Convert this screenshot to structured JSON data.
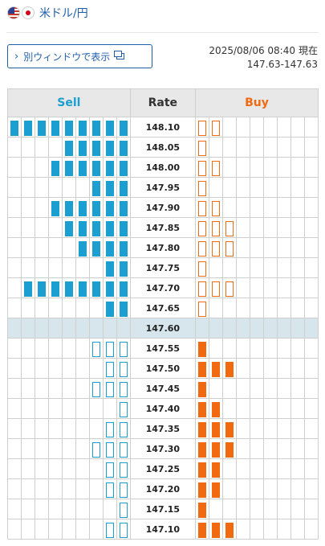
{
  "header": {
    "pair_title": "米ドル/円"
  },
  "toolbar": {
    "new_window_label": "別ウィンドウで表示"
  },
  "quote": {
    "datetime": "2025/08/06 08:40",
    "now_label": "現在",
    "range": "147.63-147.63"
  },
  "board": {
    "sell_header": "Sell",
    "rate_header": "Rate",
    "buy_header": "Buy",
    "columns_per_side": 9,
    "current_rate": "147.60",
    "rows": [
      {
        "rate": "148.10",
        "sell": 9,
        "sell_style": "filled",
        "buy": 2,
        "buy_style": "outline"
      },
      {
        "rate": "148.05",
        "sell": 5,
        "sell_style": "filled",
        "buy": 1,
        "buy_style": "outline"
      },
      {
        "rate": "148.00",
        "sell": 6,
        "sell_style": "filled",
        "buy": 2,
        "buy_style": "outline"
      },
      {
        "rate": "147.95",
        "sell": 3,
        "sell_style": "filled",
        "buy": 1,
        "buy_style": "outline"
      },
      {
        "rate": "147.90",
        "sell": 6,
        "sell_style": "filled",
        "buy": 2,
        "buy_style": "outline"
      },
      {
        "rate": "147.85",
        "sell": 5,
        "sell_style": "filled",
        "buy": 3,
        "buy_style": "outline"
      },
      {
        "rate": "147.80",
        "sell": 4,
        "sell_style": "filled",
        "buy": 3,
        "buy_style": "outline"
      },
      {
        "rate": "147.75",
        "sell": 2,
        "sell_style": "filled",
        "buy": 1,
        "buy_style": "outline"
      },
      {
        "rate": "147.70",
        "sell": 8,
        "sell_style": "filled",
        "buy": 3,
        "buy_style": "outline"
      },
      {
        "rate": "147.65",
        "sell": 2,
        "sell_style": "filled",
        "buy": 1,
        "buy_style": "outline"
      },
      {
        "rate": "147.60",
        "sell": 0,
        "sell_style": "filled",
        "buy": 0,
        "buy_style": "filled",
        "current": true
      },
      {
        "rate": "147.55",
        "sell": 3,
        "sell_style": "outline",
        "buy": 1,
        "buy_style": "filled"
      },
      {
        "rate": "147.50",
        "sell": 2,
        "sell_style": "outline",
        "buy": 3,
        "buy_style": "filled"
      },
      {
        "rate": "147.45",
        "sell": 3,
        "sell_style": "outline",
        "buy": 1,
        "buy_style": "filled"
      },
      {
        "rate": "147.40",
        "sell": 1,
        "sell_style": "outline",
        "buy": 2,
        "buy_style": "filled"
      },
      {
        "rate": "147.35",
        "sell": 2,
        "sell_style": "outline",
        "buy": 3,
        "buy_style": "filled"
      },
      {
        "rate": "147.30",
        "sell": 3,
        "sell_style": "outline",
        "buy": 3,
        "buy_style": "filled"
      },
      {
        "rate": "147.25",
        "sell": 2,
        "sell_style": "outline",
        "buy": 2,
        "buy_style": "filled"
      },
      {
        "rate": "147.20",
        "sell": 2,
        "sell_style": "outline",
        "buy": 2,
        "buy_style": "filled"
      },
      {
        "rate": "147.15",
        "sell": 1,
        "sell_style": "outline",
        "buy": 1,
        "buy_style": "filled"
      },
      {
        "rate": "147.10",
        "sell": 2,
        "sell_style": "outline",
        "buy": 3,
        "buy_style": "filled"
      }
    ]
  },
  "colors": {
    "sell": "#1b9fd1",
    "buy": "#f26a0f",
    "link": "#1f5fa8",
    "current_row": "#d6e6ec"
  }
}
